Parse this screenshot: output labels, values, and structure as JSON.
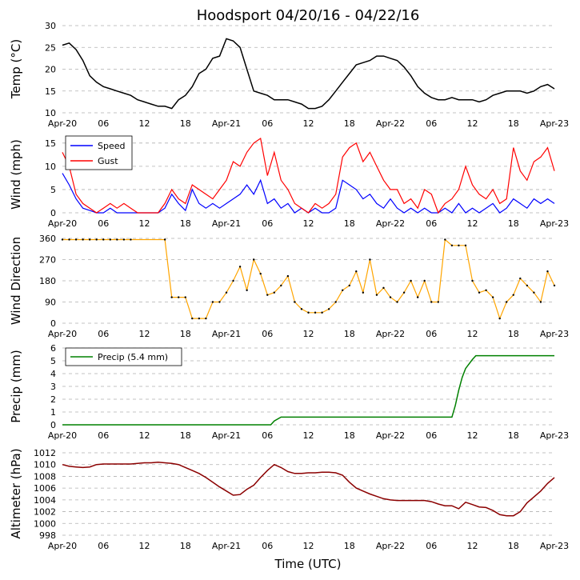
{
  "title": "Hoodsport 04/20/16 - 04/22/16",
  "xlabel": "Time (UTC)",
  "x_ticks": [
    {
      "hour": 0,
      "label": "Apr-20"
    },
    {
      "hour": 6,
      "label": "06"
    },
    {
      "hour": 12,
      "label": "12"
    },
    {
      "hour": 18,
      "label": "18"
    },
    {
      "hour": 24,
      "label": "Apr-21"
    },
    {
      "hour": 30,
      "label": "06"
    },
    {
      "hour": 36,
      "label": "12"
    },
    {
      "hour": 42,
      "label": "18"
    },
    {
      "hour": 48,
      "label": "Apr-22"
    },
    {
      "hour": 54,
      "label": "06"
    },
    {
      "hour": 60,
      "label": "12"
    },
    {
      "hour": 66,
      "label": "18"
    },
    {
      "hour": 72,
      "label": "Apr-23"
    }
  ],
  "colors": {
    "temp": "#000000",
    "speed": "#0000ff",
    "gust": "#ff0000",
    "direction": "#ffa500",
    "precip": "#008000",
    "altimeter": "#8b0000",
    "grid": "#b0b0b0"
  },
  "chart_data": [
    {
      "type": "line",
      "name": "temperature",
      "ylabel": "Temp (°C)",
      "ylim": [
        10,
        30
      ],
      "yticks": [
        10,
        15,
        20,
        25,
        30
      ],
      "xlim": [
        0,
        72
      ],
      "series": [
        {
          "name": "Temp",
          "x": [
            0,
            1,
            2,
            3,
            4,
            5,
            6,
            7,
            8,
            9,
            10,
            11,
            12,
            13,
            14,
            15,
            16,
            17,
            18,
            19,
            20,
            21,
            22,
            23,
            24,
            25,
            26,
            27,
            28,
            29,
            30,
            31,
            32,
            33,
            34,
            35,
            36,
            37,
            38,
            39,
            40,
            41,
            42,
            43,
            44,
            45,
            46,
            47,
            48,
            49,
            50,
            51,
            52,
            53,
            54,
            55,
            56,
            57,
            58,
            59,
            60,
            61,
            62,
            63,
            64,
            65,
            66,
            67,
            68,
            69,
            70,
            71,
            72
          ],
          "values": [
            25.5,
            26,
            24.5,
            22,
            18.5,
            17,
            16,
            15.5,
            15,
            14.5,
            14,
            13,
            12.5,
            12,
            11.5,
            11.5,
            11,
            13,
            14,
            16,
            19,
            20,
            22.5,
            23,
            27,
            26.5,
            25,
            20,
            15,
            14.5,
            14,
            13,
            13,
            13,
            12.5,
            12,
            11,
            11,
            11.5,
            13,
            15,
            17,
            19,
            21,
            21.5,
            22,
            23,
            23,
            22.5,
            22,
            20.5,
            18.5,
            16,
            14.5,
            13.5,
            13,
            13,
            13.5,
            13,
            13,
            13,
            12.5,
            13,
            14,
            14.5,
            15,
            15,
            15,
            14.5,
            15,
            16,
            16.5,
            15.5
          ]
        }
      ]
    },
    {
      "type": "line",
      "name": "wind",
      "ylabel": "Wind (mph)",
      "ylim": [
        0,
        16
      ],
      "yticks": [
        0,
        5,
        10,
        15
      ],
      "xlim": [
        0,
        72
      ],
      "legend": [
        "Speed",
        "Gust"
      ],
      "legend_position": "top-left",
      "series": [
        {
          "name": "Speed",
          "x": [
            0,
            1,
            2,
            3,
            4,
            5,
            6,
            7,
            8,
            9,
            10,
            11,
            12,
            13,
            14,
            15,
            16,
            17,
            18,
            19,
            20,
            21,
            22,
            23,
            24,
            25,
            26,
            27,
            28,
            29,
            30,
            31,
            32,
            33,
            34,
            35,
            36,
            37,
            38,
            39,
            40,
            41,
            42,
            43,
            44,
            45,
            46,
            47,
            48,
            49,
            50,
            51,
            52,
            53,
            54,
            55,
            56,
            57,
            58,
            59,
            60,
            61,
            62,
            63,
            64,
            65,
            66,
            67,
            68,
            69,
            70,
            71,
            72
          ],
          "values": [
            8.5,
            6,
            3,
            1,
            0.5,
            0,
            0,
            1,
            0,
            0,
            0,
            0,
            0,
            0,
            0,
            1,
            4,
            2,
            0.5,
            5,
            2,
            1,
            2,
            1,
            2,
            3,
            4,
            6,
            4,
            7,
            2,
            3,
            1,
            2,
            0,
            1,
            0,
            1,
            0,
            0,
            1,
            7,
            6,
            5,
            3,
            4,
            2,
            1,
            3,
            1,
            0,
            1,
            0,
            1,
            0,
            0,
            1,
            0,
            2,
            0,
            1,
            0,
            1,
            2,
            0,
            1,
            3,
            2,
            1,
            3,
            2,
            3,
            2
          ]
        },
        {
          "name": "Gust",
          "x": [
            0,
            1,
            2,
            3,
            4,
            5,
            6,
            7,
            8,
            9,
            10,
            11,
            12,
            13,
            14,
            15,
            16,
            17,
            18,
            19,
            20,
            21,
            22,
            23,
            24,
            25,
            26,
            27,
            28,
            29,
            30,
            31,
            32,
            33,
            34,
            35,
            36,
            37,
            38,
            39,
            40,
            41,
            42,
            43,
            44,
            45,
            46,
            47,
            48,
            49,
            50,
            51,
            52,
            53,
            54,
            55,
            56,
            57,
            58,
            59,
            60,
            61,
            62,
            63,
            64,
            65,
            66,
            67,
            68,
            69,
            70,
            71,
            72
          ],
          "values": [
            13,
            10,
            4,
            2,
            1,
            0,
            1,
            2,
            1,
            2,
            1,
            0,
            0,
            0,
            0,
            2,
            5,
            3,
            2,
            6,
            5,
            4,
            3,
            5,
            7,
            11,
            10,
            13,
            15,
            16,
            8,
            13,
            7,
            5,
            2,
            1,
            0,
            2,
            1,
            2,
            4,
            12,
            14,
            15,
            11,
            13,
            10,
            7,
            5,
            5,
            2,
            3,
            1,
            5,
            4,
            0,
            2,
            3,
            5,
            10,
            6,
            4,
            3,
            5,
            2,
            3,
            14,
            9,
            7,
            11,
            12,
            14,
            9
          ]
        }
      ]
    },
    {
      "type": "scatter",
      "name": "wind_direction",
      "ylabel": "Wind Direction",
      "ylim": [
        0,
        360
      ],
      "yticks": [
        0,
        90,
        180,
        270,
        360
      ],
      "xlim": [
        0,
        72
      ],
      "series": [
        {
          "name": "Direction",
          "x": [
            0,
            1,
            2,
            3,
            4,
            5,
            6,
            7,
            8,
            9,
            10,
            15,
            16,
            17,
            18,
            19,
            20,
            21,
            22,
            23,
            24,
            25,
            26,
            27,
            28,
            29,
            30,
            31,
            32,
            33,
            34,
            35,
            36,
            37,
            38,
            39,
            40,
            41,
            42,
            43,
            44,
            45,
            46,
            47,
            48,
            49,
            50,
            51,
            52,
            53,
            54,
            55,
            56,
            57,
            58,
            59,
            60,
            61,
            62,
            63,
            64,
            65,
            66,
            67,
            68,
            69,
            70,
            71,
            72
          ],
          "values": [
            355,
            355,
            355,
            355,
            355,
            355,
            355,
            355,
            355,
            355,
            355,
            355,
            110,
            110,
            110,
            20,
            20,
            20,
            90,
            90,
            130,
            180,
            240,
            140,
            270,
            210,
            120,
            130,
            160,
            200,
            90,
            60,
            45,
            45,
            45,
            60,
            90,
            140,
            160,
            220,
            130,
            270,
            120,
            150,
            110,
            90,
            130,
            180,
            110,
            180,
            90,
            90,
            355,
            330,
            330,
            330,
            180,
            130,
            140,
            110,
            20,
            90,
            120,
            190,
            160,
            130,
            90,
            220,
            160
          ]
        }
      ]
    },
    {
      "type": "line",
      "name": "precipitation",
      "ylabel": "Precip (mm)",
      "ylim": [
        0,
        6
      ],
      "yticks": [
        0,
        1,
        2,
        3,
        4,
        5,
        6
      ],
      "xlim": [
        0,
        72
      ],
      "legend": [
        "Precip (5.4 mm)"
      ],
      "legend_position": "top-left",
      "series": [
        {
          "name": "Precip (5.4 mm)",
          "x": [
            0,
            6,
            12,
            18,
            24,
            28,
            30.5,
            31,
            32,
            36,
            42,
            48,
            54,
            57,
            57.5,
            58,
            58.5,
            59,
            60,
            60.5,
            62,
            66,
            72
          ],
          "values": [
            0,
            0,
            0,
            0,
            0,
            0,
            0,
            0.3,
            0.6,
            0.6,
            0.6,
            0.6,
            0.6,
            0.6,
            1.5,
            2.7,
            3.7,
            4.4,
            5.1,
            5.4,
            5.4,
            5.4,
            5.4
          ]
        }
      ]
    },
    {
      "type": "line",
      "name": "altimeter",
      "ylabel": "Altimeter (hPa)",
      "ylim": [
        998,
        1012
      ],
      "yticks": [
        998,
        1000,
        1002,
        1004,
        1006,
        1008,
        1010,
        1012
      ],
      "xlim": [
        0,
        72
      ],
      "series": [
        {
          "name": "Altimeter",
          "x": [
            0,
            1,
            2,
            3,
            4,
            5,
            6,
            7,
            8,
            9,
            10,
            11,
            12,
            13,
            14,
            15,
            16,
            17,
            18,
            19,
            20,
            21,
            22,
            23,
            24,
            25,
            26,
            27,
            28,
            29,
            30,
            31,
            32,
            33,
            34,
            35,
            36,
            37,
            38,
            39,
            40,
            41,
            42,
            43,
            44,
            45,
            46,
            47,
            48,
            49,
            50,
            51,
            52,
            53,
            54,
            55,
            56,
            57,
            58,
            59,
            60,
            61,
            62,
            63,
            64,
            65,
            66,
            67,
            68,
            69,
            70,
            71,
            72
          ],
          "values": [
            1010,
            1009.7,
            1009.6,
            1009.5,
            1009.6,
            1010,
            1010.1,
            1010.1,
            1010.1,
            1010.1,
            1010.1,
            1010.2,
            1010.3,
            1010.3,
            1010.4,
            1010.3,
            1010.2,
            1010,
            1009.5,
            1009,
            1008.5,
            1007.8,
            1007,
            1006.2,
            1005.5,
            1004.8,
            1004.9,
            1005.8,
            1006.5,
            1007.8,
            1009,
            1010,
            1009.5,
            1008.8,
            1008.5,
            1008.5,
            1008.6,
            1008.6,
            1008.7,
            1008.7,
            1008.6,
            1008.2,
            1007,
            1006,
            1005.5,
            1005,
            1004.6,
            1004.2,
            1004,
            1003.9,
            1003.9,
            1003.9,
            1003.9,
            1003.9,
            1003.7,
            1003.3,
            1003,
            1003,
            1002.5,
            1003.6,
            1003.2,
            1002.8,
            1002.7,
            1002.2,
            1001.5,
            1001.3,
            1001.3,
            1002,
            1003.5,
            1004.5,
            1005.5,
            1006.8,
            1007.8
          ]
        }
      ]
    }
  ]
}
